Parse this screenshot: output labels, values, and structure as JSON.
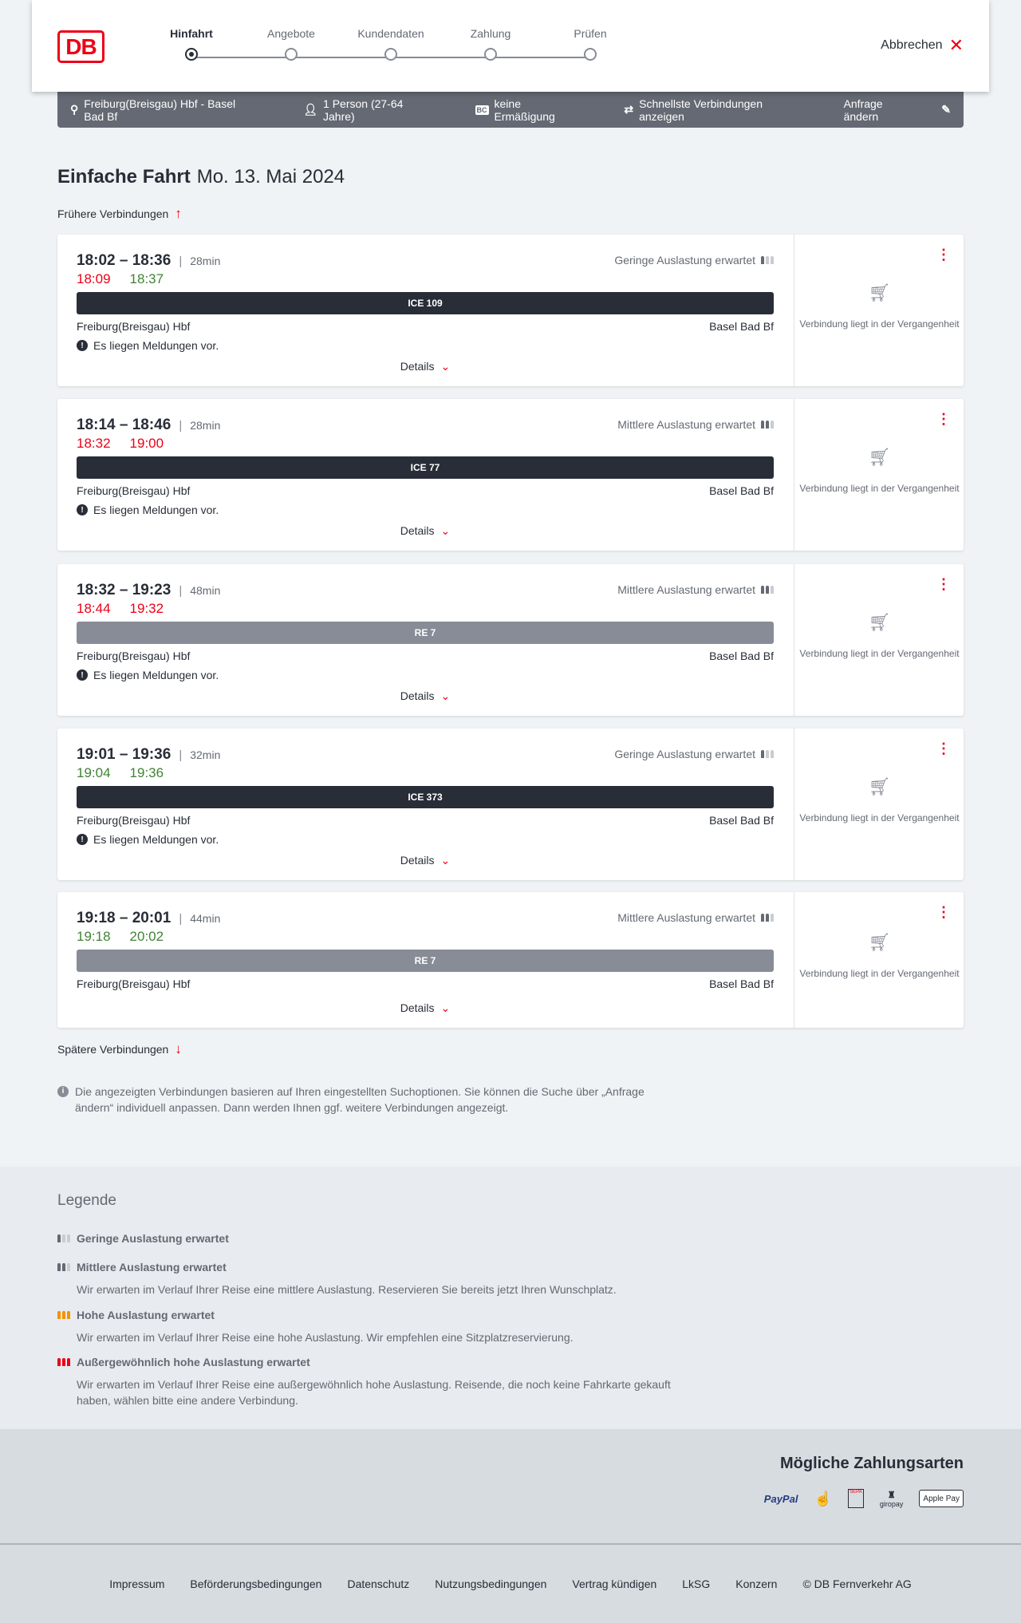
{
  "header": {
    "logo": "DB",
    "steps": [
      {
        "label": "Hinfahrt",
        "active": true
      },
      {
        "label": "Angebote",
        "active": false
      },
      {
        "label": "Kundendaten",
        "active": false
      },
      {
        "label": "Zahlung",
        "active": false
      },
      {
        "label": "Prüfen",
        "active": false
      }
    ],
    "cancel_label": "Abbrechen"
  },
  "summary": {
    "route": "Freiburg(Breisgau) Hbf - Basel Bad Bf",
    "travellers": "1 Person (27-64 Jahre)",
    "discount_badge": "BC",
    "discount": "keine Ermäßigung",
    "option": "Schnellste Verbindungen anzeigen",
    "edit_label": "Anfrage ändern"
  },
  "main": {
    "title": "Einfache Fahrt",
    "date": "Mo. 13. Mai 2024",
    "earlier": "Frühere Verbindungen",
    "later": "Spätere Verbindungen",
    "info": "Die angezeigten Verbindungen basieren auf Ihren eingestellten Suchoptionen. Sie können die Suche über „Anfrage ändern“ individuell anpassen. Dann werden Ihnen ggf. weitere Verbindungen angezeigt.",
    "connections": [
      {
        "times": "18:02 – 18:36",
        "duration": "28min",
        "rt_dep": "18:09",
        "rt_dep_status": "delayed",
        "rt_arr": "18:37",
        "rt_arr_status": "ontime",
        "occupancy": "Geringe Auslastung erwartet",
        "occupancy_level": 1,
        "train": "ICE 109",
        "train_type": "long-distance",
        "from": "Freiburg(Breisgau) Hbf",
        "to": "Basel Bad Bf",
        "message": "Es liegen Meldungen vor.",
        "details": "Details",
        "status": "Verbindung liegt in der Vergangenheit"
      },
      {
        "times": "18:14 – 18:46",
        "duration": "28min",
        "rt_dep": "18:32",
        "rt_dep_status": "delayed",
        "rt_arr": "19:00",
        "rt_arr_status": "delayed",
        "occupancy": "Mittlere Auslastung erwartet",
        "occupancy_level": 2,
        "train": "ICE 77",
        "train_type": "long-distance",
        "from": "Freiburg(Breisgau) Hbf",
        "to": "Basel Bad Bf",
        "message": "Es liegen Meldungen vor.",
        "details": "Details",
        "status": "Verbindung liegt in der Vergangenheit"
      },
      {
        "times": "18:32 – 19:23",
        "duration": "48min",
        "rt_dep": "18:44",
        "rt_dep_status": "delayed",
        "rt_arr": "19:32",
        "rt_arr_status": "delayed",
        "occupancy": "Mittlere Auslastung erwartet",
        "occupancy_level": 2,
        "train": "RE 7",
        "train_type": "regional",
        "from": "Freiburg(Breisgau) Hbf",
        "to": "Basel Bad Bf",
        "message": "Es liegen Meldungen vor.",
        "details": "Details",
        "status": "Verbindung liegt in der Vergangenheit"
      },
      {
        "times": "19:01 – 19:36",
        "duration": "32min",
        "rt_dep": "19:04",
        "rt_dep_status": "ontime",
        "rt_arr": "19:36",
        "rt_arr_status": "ontime",
        "occupancy": "Geringe Auslastung erwartet",
        "occupancy_level": 1,
        "train": "ICE 373",
        "train_type": "long-distance",
        "from": "Freiburg(Breisgau) Hbf",
        "to": "Basel Bad Bf",
        "message": "Es liegen Meldungen vor.",
        "details": "Details",
        "status": "Verbindung liegt in der Vergangenheit"
      },
      {
        "times": "19:18 – 20:01",
        "duration": "44min",
        "rt_dep": "19:18",
        "rt_dep_status": "ontime",
        "rt_arr": "20:02",
        "rt_arr_status": "ontime",
        "occupancy": "Mittlere Auslastung erwartet",
        "occupancy_level": 2,
        "train": "RE 7",
        "train_type": "regional",
        "from": "Freiburg(Breisgau) Hbf",
        "to": "Basel Bad Bf",
        "details": "Details",
        "status": "Verbindung liegt in der Vergangenheit"
      }
    ]
  },
  "legend": {
    "title": "Legende",
    "items": [
      {
        "title": "Geringe Auslastung erwartet"
      },
      {
        "title": "Mittlere Auslastung erwartet",
        "desc": "Wir erwarten im Verlauf Ihrer Reise eine mittlere Auslastung. Reservieren Sie bereits jetzt Ihren Wunschplatz."
      },
      {
        "title": "Hohe Auslastung erwartet",
        "desc": "Wir erwarten im Verlauf Ihrer Reise eine hohe Auslastung. Wir empfehlen eine Sitzplatzreservierung."
      },
      {
        "title": "Außergewöhnlich hohe Auslastung erwartet",
        "desc": "Wir erwarten im Verlauf Ihrer Reise eine außergewöhnlich hohe Auslastung. Reisende, die noch keine Fahrkarte gekauft haben, wählen bitte eine andere Verbindung."
      }
    ]
  },
  "payment": {
    "title": "Mögliche Zahlungsarten",
    "methods": [
      "PayPal",
      "Kreditkarte",
      "SEPA",
      "giropay",
      "Apple Pay"
    ]
  },
  "footer": {
    "links": [
      "Impressum",
      "Beförderungsbedingungen",
      "Datenschutz",
      "Nutzungsbedingungen",
      "Vertrag kündigen",
      "LkSG",
      "Konzern",
      "© DB Fernverkehr AG"
    ]
  },
  "colors": {
    "brand": "#ec0016",
    "delayed": "#ec0016",
    "ontime": "#408335",
    "long_distance_bar": "#282d37",
    "regional_bar": "#878c96",
    "summary_bar": "#646973"
  }
}
